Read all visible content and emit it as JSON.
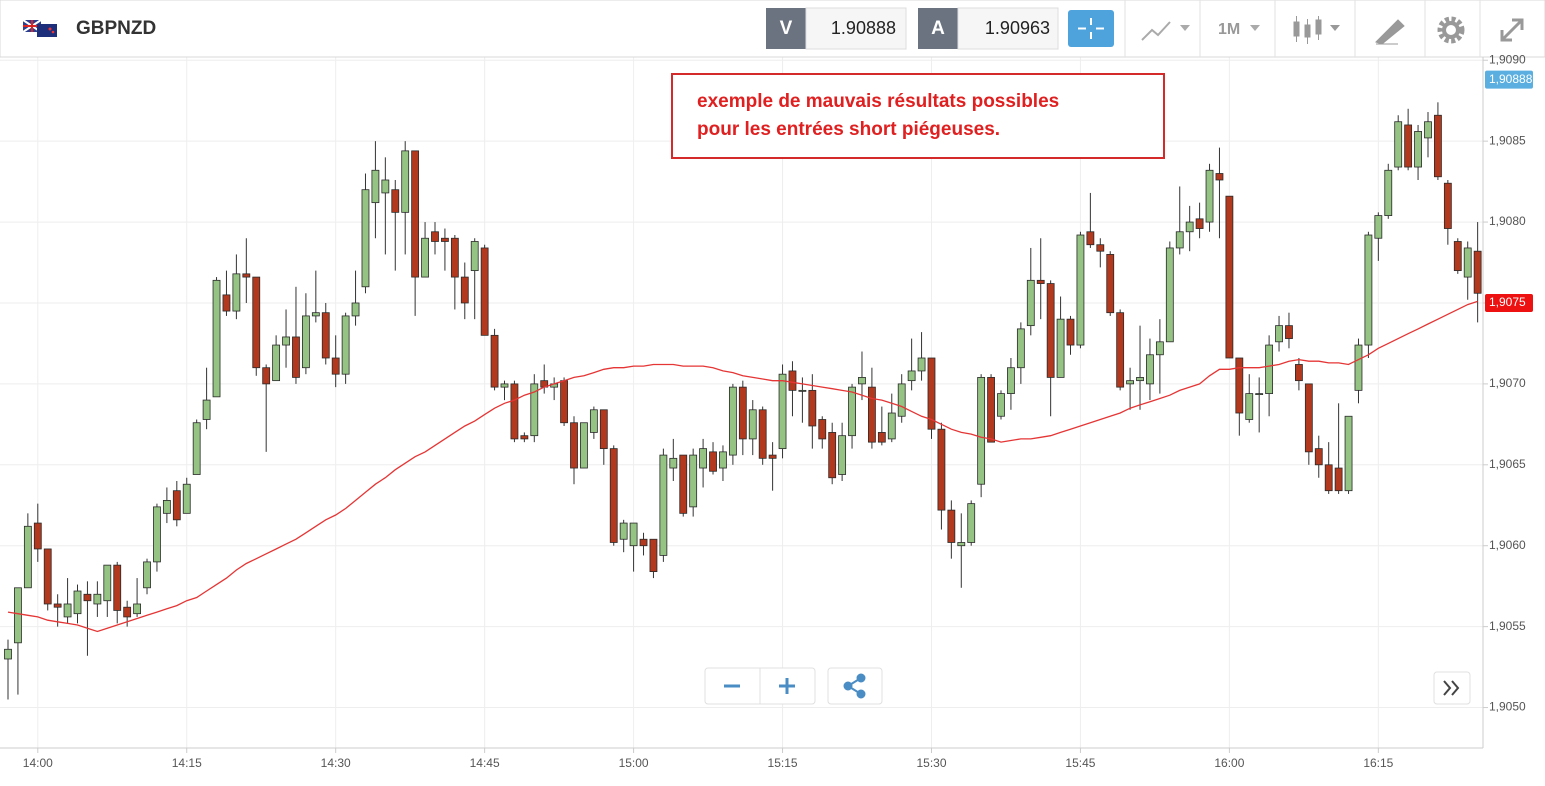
{
  "header": {
    "symbol": "GBPNZD",
    "bid_label": "V",
    "bid": 1.90888,
    "ask_label": "A",
    "ask": 1.90963,
    "timeframe": "1M"
  },
  "chart_data": {
    "type": "candlestick",
    "annotation": [
      "exemple de mauvais résultats possibles",
      "pour les entrées short piégeuses."
    ],
    "categories": [
      null,
      null,
      null,
      "14:00",
      null,
      null,
      null,
      null,
      null,
      null,
      null,
      null,
      null,
      null,
      null,
      null,
      null,
      null,
      "14:15",
      null,
      null,
      null,
      null,
      null,
      null,
      null,
      null,
      null,
      null,
      null,
      null,
      null,
      null,
      "14:30",
      null,
      null,
      null,
      null,
      null,
      null,
      null,
      null,
      null,
      null,
      null,
      null,
      null,
      null,
      "14:45",
      null,
      null,
      null,
      null,
      null,
      null,
      null,
      null,
      null,
      null,
      null,
      null,
      null,
      null,
      "15:00",
      null,
      null,
      null,
      null,
      null,
      null,
      null,
      null,
      null,
      null,
      null,
      null,
      null,
      null,
      "15:15",
      null,
      null,
      null,
      null,
      null,
      null,
      null,
      null,
      null,
      null,
      null,
      null,
      null,
      null,
      "15:30",
      null,
      null,
      null,
      null,
      null,
      null,
      null,
      null,
      null,
      null,
      null,
      null,
      null,
      null,
      "15:45",
      null,
      null,
      null,
      null,
      null,
      null,
      null,
      null,
      null,
      null,
      null,
      null,
      null,
      null,
      "16:00",
      null,
      null,
      null,
      null,
      null,
      null,
      null,
      null,
      null,
      null,
      null,
      null,
      null,
      null,
      "16:15",
      null,
      null,
      null,
      null,
      null,
      null,
      null,
      null,
      null,
      null
    ],
    "ohlc": [
      [
        1.9053,
        1.90542,
        1.90505,
        1.90536
      ],
      [
        1.9054,
        1.90574,
        1.90508,
        1.90574
      ],
      [
        1.90574,
        1.9062,
        1.90574,
        1.90612
      ],
      [
        1.90614,
        1.90626,
        1.9059,
        1.90598
      ],
      [
        1.90598,
        1.90598,
        1.9056,
        1.90564
      ],
      [
        1.90564,
        1.9057,
        1.9055,
        1.90562
      ],
      [
        1.90556,
        1.9058,
        1.90552,
        1.90564
      ],
      [
        1.90558,
        1.90576,
        1.90552,
        1.90572
      ],
      [
        1.9057,
        1.90578,
        1.90532,
        1.90566
      ],
      [
        1.90564,
        1.90578,
        1.90556,
        1.9057
      ],
      [
        1.90566,
        1.90588,
        1.90556,
        1.90588
      ],
      [
        1.90588,
        1.9059,
        1.90552,
        1.9056
      ],
      [
        1.90562,
        1.90566,
        1.9055,
        1.90556
      ],
      [
        1.90558,
        1.9058,
        1.90556,
        1.90564
      ],
      [
        1.90574,
        1.90592,
        1.9057,
        1.9059
      ],
      [
        1.9059,
        1.90626,
        1.90584,
        1.90624
      ],
      [
        1.9062,
        1.90636,
        1.90614,
        1.90628
      ],
      [
        1.90634,
        1.9064,
        1.90612,
        1.90616
      ],
      [
        1.9062,
        1.90642,
        1.9062,
        1.90638
      ],
      [
        1.90644,
        1.90678,
        1.90644,
        1.90676
      ],
      [
        1.90678,
        1.9071,
        1.90672,
        1.9069
      ],
      [
        1.90692,
        1.90766,
        1.90692,
        1.90764
      ],
      [
        1.90755,
        1.9077,
        1.90742,
        1.90745
      ],
      [
        1.90745,
        1.9078,
        1.9074,
        1.90768
      ],
      [
        1.90768,
        1.9079,
        1.9075,
        1.90766
      ],
      [
        1.90766,
        1.90766,
        1.90705,
        1.9071
      ],
      [
        1.9071,
        1.90712,
        1.90658,
        1.907
      ],
      [
        1.90702,
        1.9073,
        1.90702,
        1.90724
      ],
      [
        1.90724,
        1.90746,
        1.9071,
        1.90729
      ],
      [
        1.90729,
        1.9076,
        1.907,
        1.90704
      ],
      [
        1.9071,
        1.90756,
        1.90706,
        1.90742
      ],
      [
        1.90742,
        1.9077,
        1.90738,
        1.90744
      ],
      [
        1.90744,
        1.9075,
        1.90712,
        1.90716
      ],
      [
        1.90716,
        1.9073,
        1.90698,
        1.90706
      ],
      [
        1.90706,
        1.90744,
        1.907,
        1.90742
      ],
      [
        1.90742,
        1.9077,
        1.90736,
        1.9075
      ],
      [
        1.9076,
        1.9083,
        1.90756,
        1.9082
      ],
      [
        1.90812,
        1.9085,
        1.9079,
        1.90832
      ],
      [
        1.90818,
        1.9084,
        1.9078,
        1.90826
      ],
      [
        1.9082,
        1.90826,
        1.9077,
        1.90806
      ],
      [
        1.90806,
        1.9085,
        1.9078,
        1.90844
      ],
      [
        1.90844,
        1.90844,
        1.90742,
        1.90766
      ],
      [
        1.90766,
        1.908,
        1.90766,
        1.9079
      ],
      [
        1.90794,
        1.908,
        1.9078,
        1.90788
      ],
      [
        1.9079,
        1.90796,
        1.9077,
        1.90788
      ],
      [
        1.9079,
        1.90792,
        1.90746,
        1.90766
      ],
      [
        1.90766,
        1.90775,
        1.9074,
        1.9075
      ],
      [
        1.9077,
        1.9079,
        1.9074,
        1.90788
      ],
      [
        1.90784,
        1.90786,
        1.9073,
        1.9073
      ],
      [
        1.9073,
        1.90734,
        1.90696,
        1.90698
      ],
      [
        1.90698,
        1.90702,
        1.9069,
        1.907
      ],
      [
        1.907,
        1.90702,
        1.90664,
        1.90666
      ],
      [
        1.90668,
        1.9067,
        1.90664,
        1.90666
      ],
      [
        1.90668,
        1.90706,
        1.90664,
        1.907
      ],
      [
        1.90702,
        1.90712,
        1.90694,
        1.90698
      ],
      [
        1.90698,
        1.90704,
        1.9069,
        1.907
      ],
      [
        1.90702,
        1.90704,
        1.90674,
        1.90676
      ],
      [
        1.90676,
        1.9068,
        1.90638,
        1.90648
      ],
      [
        1.90648,
        1.90676,
        1.90648,
        1.90676
      ],
      [
        1.9067,
        1.90686,
        1.90666,
        1.90684
      ],
      [
        1.90684,
        1.90684,
        1.9065,
        1.9066
      ],
      [
        1.9066,
        1.90662,
        1.906,
        1.90602
      ],
      [
        1.90604,
        1.90616,
        1.90596,
        1.90614
      ],
      [
        1.906,
        1.90614,
        1.90584,
        1.90614
      ],
      [
        1.90604,
        1.90608,
        1.90594,
        1.906
      ],
      [
        1.90604,
        1.90604,
        1.9058,
        1.90584
      ],
      [
        1.90594,
        1.9066,
        1.9059,
        1.90656
      ],
      [
        1.90648,
        1.90666,
        1.9064,
        1.90654
      ],
      [
        1.90656,
        1.90656,
        1.90618,
        1.9062
      ],
      [
        1.90624,
        1.9066,
        1.90618,
        1.90656
      ],
      [
        1.90648,
        1.90666,
        1.90636,
        1.9066
      ],
      [
        1.90658,
        1.90664,
        1.90644,
        1.90646
      ],
      [
        1.90648,
        1.90662,
        1.9064,
        1.90658
      ],
      [
        1.90656,
        1.907,
        1.9065,
        1.90698
      ],
      [
        1.90698,
        1.90702,
        1.90656,
        1.90666
      ],
      [
        1.90666,
        1.9069,
        1.90656,
        1.90684
      ],
      [
        1.90684,
        1.90686,
        1.9065,
        1.90654
      ],
      [
        1.90656,
        1.90664,
        1.90634,
        1.90654
      ],
      [
        1.9066,
        1.90712,
        1.90654,
        1.90706
      ],
      [
        1.90708,
        1.90714,
        1.9068,
        1.90696
      ],
      [
        1.90696,
        1.90704,
        1.90676,
        1.90696
      ],
      [
        1.90696,
        1.90706,
        1.9066,
        1.90674
      ],
      [
        1.90678,
        1.9068,
        1.9066,
        1.90666
      ],
      [
        1.9067,
        1.90676,
        1.90638,
        1.90642
      ],
      [
        1.90644,
        1.90676,
        1.9064,
        1.90668
      ],
      [
        1.90668,
        1.907,
        1.9066,
        1.90698
      ],
      [
        1.907,
        1.9072,
        1.9069,
        1.90704
      ],
      [
        1.90698,
        1.9071,
        1.9066,
        1.90664
      ],
      [
        1.9067,
        1.90686,
        1.90662,
        1.90664
      ],
      [
        1.90666,
        1.90694,
        1.90664,
        1.90682
      ],
      [
        1.9068,
        1.90706,
        1.90676,
        1.907
      ],
      [
        1.90702,
        1.90728,
        1.90696,
        1.90708
      ],
      [
        1.90708,
        1.90732,
        1.90702,
        1.90716
      ],
      [
        1.90716,
        1.90716,
        1.90666,
        1.90672
      ],
      [
        1.90672,
        1.90676,
        1.9061,
        1.90622
      ],
      [
        1.90622,
        1.90628,
        1.90592,
        1.90602
      ],
      [
        1.906,
        1.9062,
        1.90574,
        1.90602
      ],
      [
        1.90602,
        1.90628,
        1.906,
        1.90626
      ],
      [
        1.90638,
        1.90706,
        1.9063,
        1.90704
      ],
      [
        1.90704,
        1.90706,
        1.90664,
        1.90664
      ],
      [
        1.9068,
        1.90696,
        1.90678,
        1.90694
      ],
      [
        1.90694,
        1.90716,
        1.90684,
        1.9071
      ],
      [
        1.9071,
        1.90738,
        1.907,
        1.90734
      ],
      [
        1.90736,
        1.90784,
        1.9073,
        1.90764
      ],
      [
        1.90764,
        1.9079,
        1.9074,
        1.90762
      ],
      [
        1.90762,
        1.90764,
        1.9068,
        1.90704
      ],
      [
        1.90704,
        1.90754,
        1.90704,
        1.9074
      ],
      [
        1.9074,
        1.90742,
        1.90718,
        1.90724
      ],
      [
        1.90724,
        1.90794,
        1.90722,
        1.90792
      ],
      [
        1.90794,
        1.90818,
        1.90784,
        1.90786
      ],
      [
        1.90786,
        1.9079,
        1.90772,
        1.90782
      ],
      [
        1.9078,
        1.90782,
        1.90742,
        1.90744
      ],
      [
        1.90744,
        1.90746,
        1.90696,
        1.90698
      ],
      [
        1.907,
        1.9071,
        1.90684,
        1.90702
      ],
      [
        1.90702,
        1.90736,
        1.90684,
        1.90704
      ],
      [
        1.907,
        1.90728,
        1.9069,
        1.90718
      ],
      [
        1.90718,
        1.9074,
        1.90694,
        1.90726
      ],
      [
        1.90726,
        1.90788,
        1.90726,
        1.90784
      ],
      [
        1.90784,
        1.90822,
        1.9078,
        1.90794
      ],
      [
        1.90794,
        1.9081,
        1.90782,
        1.908
      ],
      [
        1.90802,
        1.90812,
        1.9079,
        1.90796
      ],
      [
        1.908,
        1.90836,
        1.90794,
        1.90832
      ],
      [
        1.9083,
        1.90846,
        1.9079,
        1.90826
      ],
      [
        1.90816,
        1.90816,
        1.90716,
        1.90716
      ],
      [
        1.90716,
        1.90716,
        1.90668,
        1.90682
      ],
      [
        1.90678,
        1.90706,
        1.90676,
        1.90694
      ],
      [
        1.90694,
        1.90704,
        1.9067,
        1.90694
      ],
      [
        1.90694,
        1.9073,
        1.9068,
        1.90724
      ],
      [
        1.90726,
        1.90742,
        1.9072,
        1.90736
      ],
      [
        1.90736,
        1.90744,
        1.90722,
        1.90728
      ],
      [
        1.90712,
        1.90716,
        1.90696,
        1.90702
      ],
      [
        1.907,
        1.907,
        1.9065,
        1.90658
      ],
      [
        1.9066,
        1.90668,
        1.90642,
        1.9065
      ],
      [
        1.9065,
        1.90664,
        1.90632,
        1.90634
      ],
      [
        1.90648,
        1.90688,
        1.90632,
        1.90634
      ],
      [
        1.90634,
        1.9068,
        1.90632,
        1.9068
      ],
      [
        1.90696,
        1.90728,
        1.90688,
        1.90724
      ],
      [
        1.90724,
        1.90794,
        1.90716,
        1.90792
      ],
      [
        1.9079,
        1.90806,
        1.90776,
        1.90804
      ],
      [
        1.90804,
        1.90836,
        1.90802,
        1.90832
      ],
      [
        1.90834,
        1.90866,
        1.90832,
        1.90862
      ],
      [
        1.9086,
        1.9087,
        1.90832,
        1.90834
      ],
      [
        1.90834,
        1.9086,
        1.90826,
        1.90856
      ],
      [
        1.90852,
        1.90868,
        1.9084,
        1.90862
      ],
      [
        1.90866,
        1.90874,
        1.90826,
        1.90828
      ],
      [
        1.90824,
        1.90826,
        1.90786,
        1.90796
      ],
      [
        1.90788,
        1.9079,
        1.90768,
        1.9077
      ],
      [
        1.90766,
        1.90788,
        1.90752,
        1.90784
      ],
      [
        1.90782,
        1.908,
        1.90738,
        1.90756
      ]
    ],
    "up_color": "#94c383",
    "down_color": "#b2391d",
    "line": {
      "color": "#e53535",
      "values": [
        1.90559,
        1.90558,
        1.90557,
        1.90556,
        1.90554,
        1.90553,
        1.90552,
        1.90551,
        1.90549,
        1.90547,
        1.90549,
        1.90551,
        1.90553,
        1.90555,
        1.90557,
        1.90559,
        1.90561,
        1.90563,
        1.90566,
        1.90568,
        1.90572,
        1.90576,
        1.9058,
        1.90585,
        1.90589,
        1.90592,
        1.90595,
        1.90598,
        1.90601,
        1.90604,
        1.90608,
        1.90612,
        1.90616,
        1.90619,
        1.90623,
        1.90628,
        1.90633,
        1.90638,
        1.90642,
        1.90647,
        1.90651,
        1.90655,
        1.90658,
        1.90662,
        1.90666,
        1.9067,
        1.90674,
        1.90677,
        1.90681,
        1.90685,
        1.90688,
        1.9069,
        1.90693,
        1.90695,
        1.90698,
        1.907,
        1.90702,
        1.90704,
        1.90705,
        1.90707,
        1.90709,
        1.9071,
        1.9071,
        1.90711,
        1.90711,
        1.90712,
        1.90712,
        1.90712,
        1.90711,
        1.90711,
        1.90711,
        1.9071,
        1.90708,
        1.90707,
        1.90705,
        1.90704,
        1.90703,
        1.90702,
        1.90702,
        1.90701,
        1.907,
        1.90699,
        1.90698,
        1.90697,
        1.90696,
        1.90695,
        1.90693,
        1.90691,
        1.9069,
        1.90688,
        1.90686,
        1.90683,
        1.9068,
        1.90678,
        1.90675,
        1.90672,
        1.9067,
        1.90669,
        1.90667,
        1.90666,
        1.90664,
        1.90665,
        1.90666,
        1.90666,
        1.90667,
        1.90668,
        1.9067,
        1.90672,
        1.90674,
        1.90676,
        1.90678,
        1.9068,
        1.90682,
        1.90685,
        1.90687,
        1.90689,
        1.90691,
        1.90693,
        1.90696,
        1.90698,
        1.907,
        1.90705,
        1.90709,
        1.90709,
        1.9071,
        1.9071,
        1.9071,
        1.90711,
        1.90712,
        1.90714,
        1.90715,
        1.90714,
        1.90714,
        1.90713,
        1.90713,
        1.90712,
        1.90715,
        1.90718,
        1.90722,
        1.90725,
        1.90728,
        1.90731,
        1.90734,
        1.90737,
        1.9074,
        1.90743,
        1.90746,
        1.90749,
        1.90751
      ]
    },
    "ylim": [
      1.90475,
      1.90902
    ],
    "yticks": [
      {
        "value": 1.905,
        "label": "1,9050"
      },
      {
        "value": 1.9055,
        "label": "1,9055"
      },
      {
        "value": 1.906,
        "label": "1,9060"
      },
      {
        "value": 1.9065,
        "label": "1,9065"
      },
      {
        "value": 1.907,
        "label": "1,9070"
      },
      {
        "value": 1.9075,
        "label": "1,9075"
      },
      {
        "value": 1.908,
        "label": "1,9080"
      },
      {
        "value": 1.9085,
        "label": "1,9085"
      },
      {
        "value": 1.909,
        "label": "1,9090"
      }
    ],
    "price_tags": [
      {
        "value": 1.90888,
        "label": "1,90888",
        "color": "#5aafe0"
      },
      {
        "value": 1.9075,
        "label": "1,9075",
        "color": "#ee1111"
      }
    ],
    "grid": true
  }
}
